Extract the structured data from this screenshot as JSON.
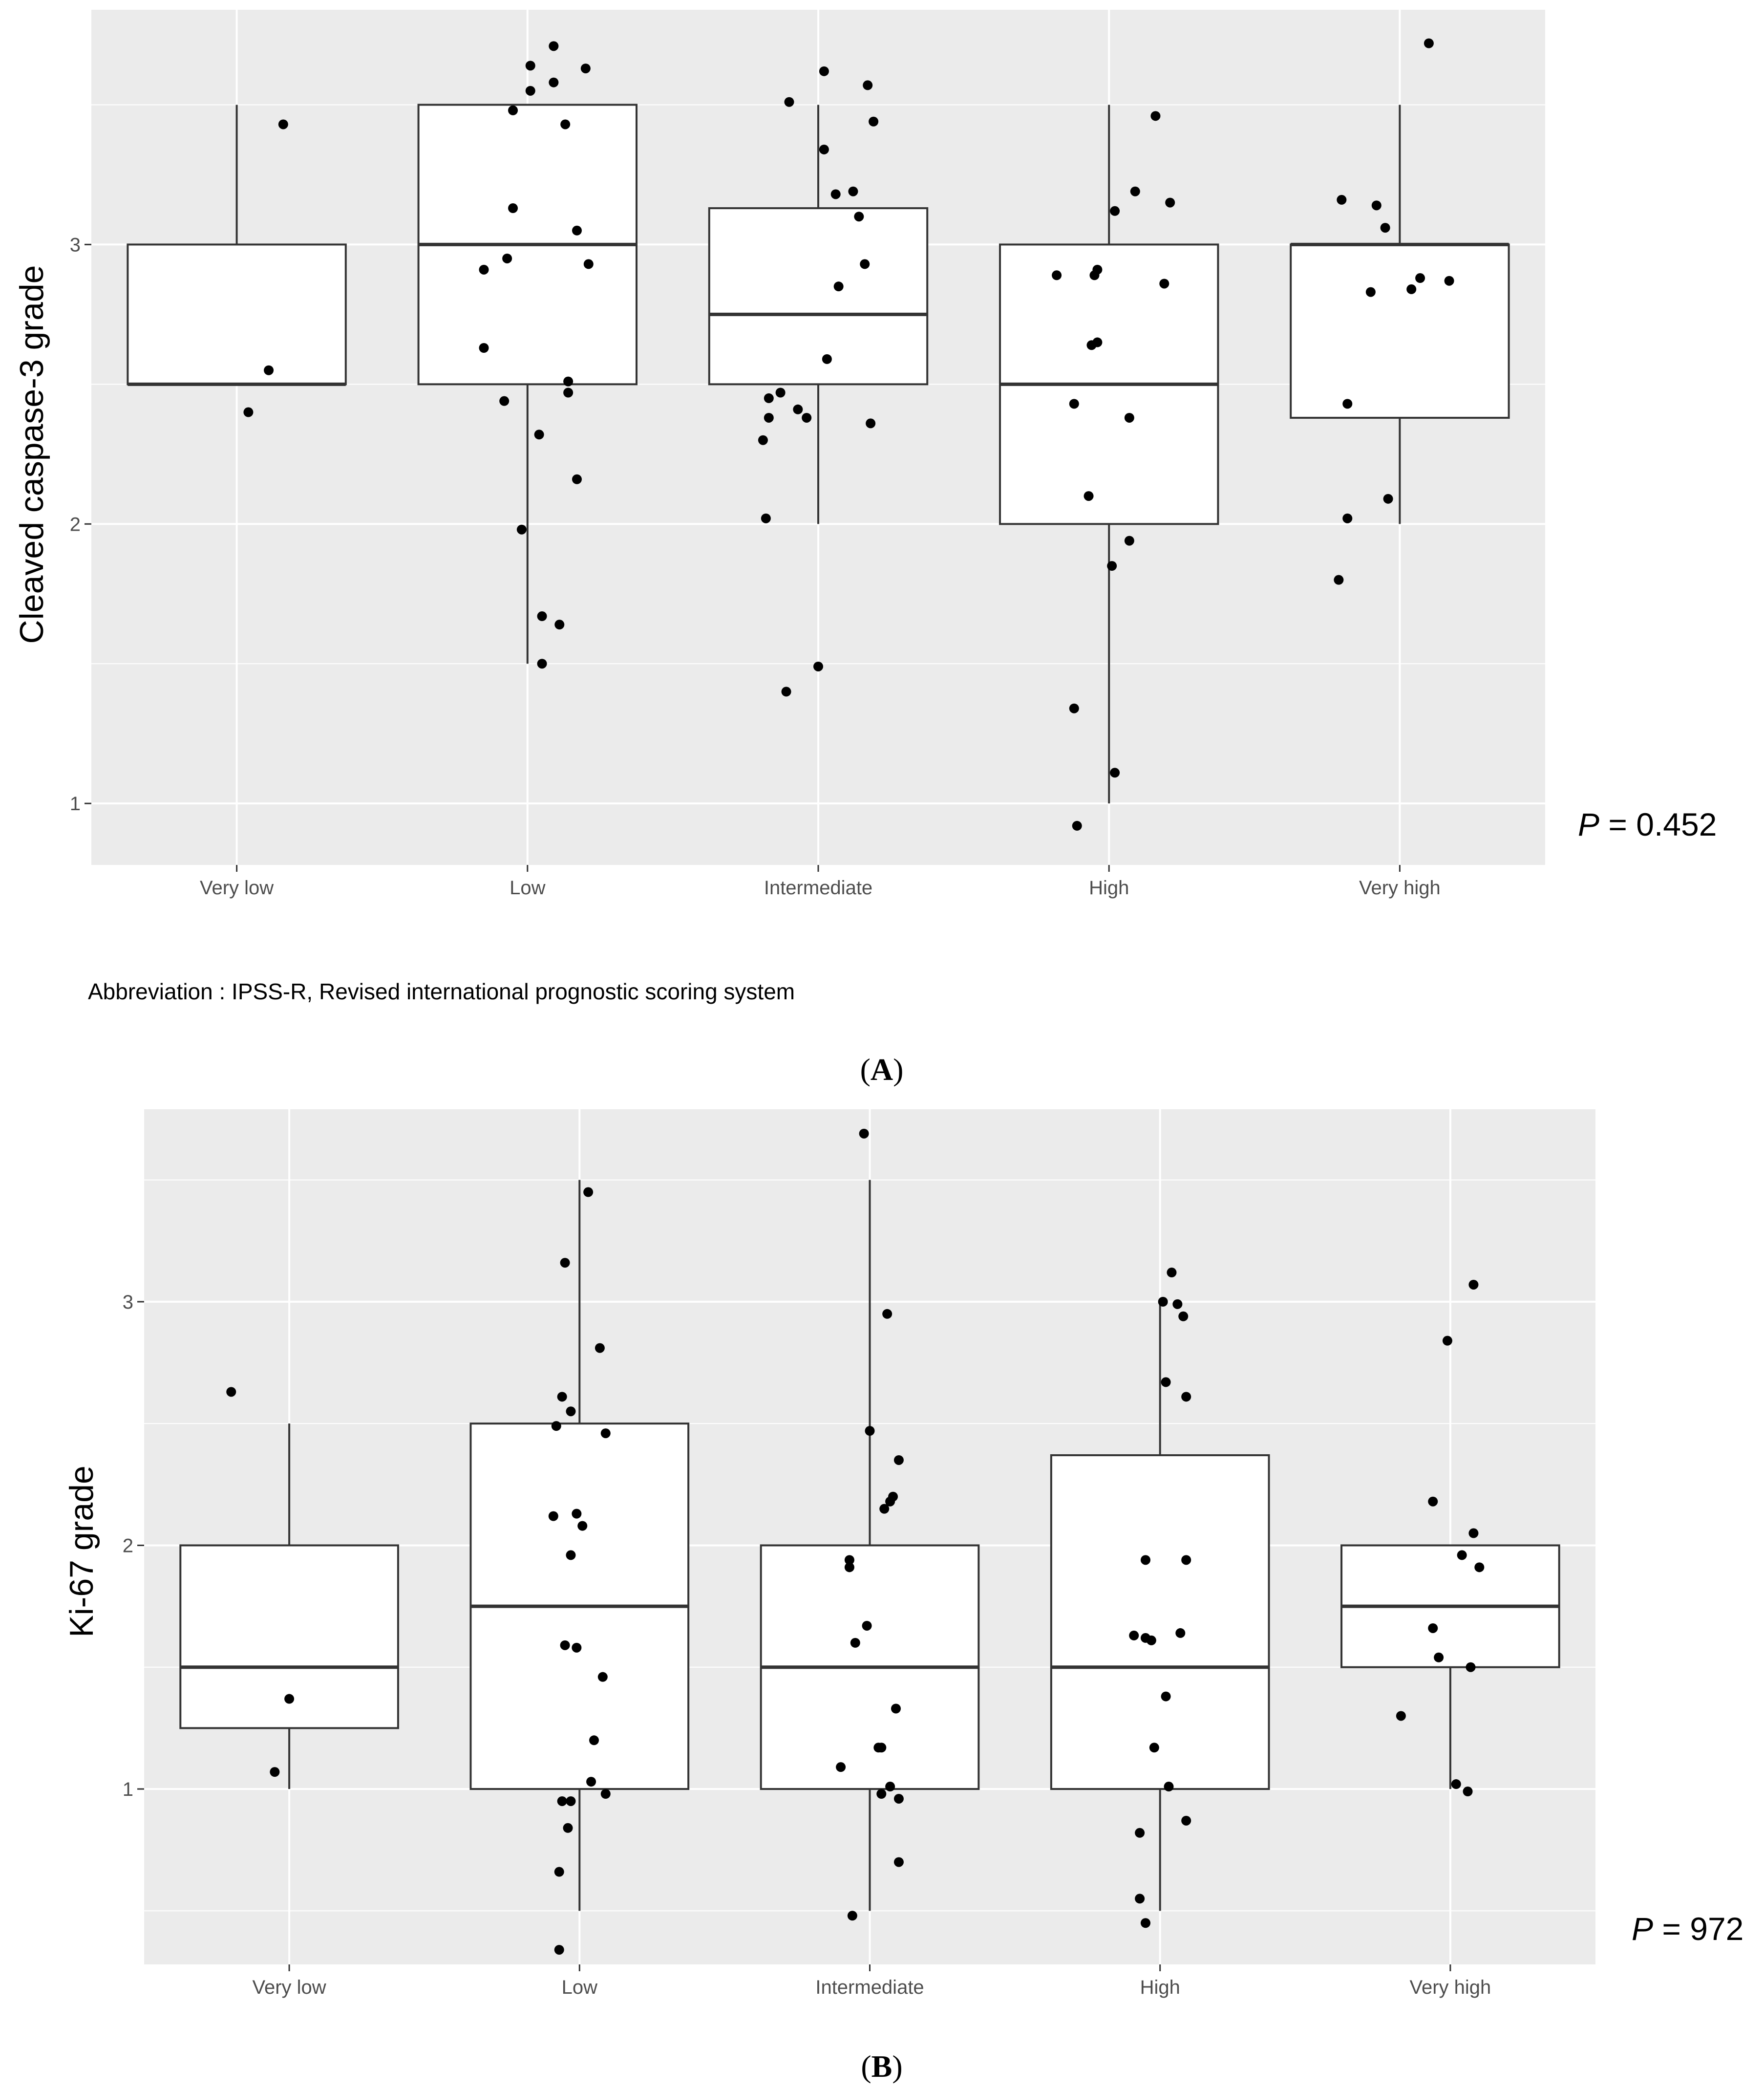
{
  "colors": {
    "panel_bg": "#ebebeb",
    "grid": "#ffffff",
    "box_fill": "#ffffff",
    "box_stroke": "#333333",
    "point": "#000000",
    "tick_text": "#4d4d4d"
  },
  "chart_data": [
    {
      "type": "box",
      "panel_label": "A",
      "title": "",
      "xlabel": "",
      "ylabel": "Cleaved caspase-3 grade",
      "categories": [
        "Very low",
        "Low",
        "Intermediate",
        "High",
        "Very high"
      ],
      "ylim": [
        0.78,
        3.84
      ],
      "yticks": [
        1,
        2,
        3
      ],
      "ytick_labels": [
        "1",
        "2",
        "3"
      ],
      "grid": true,
      "boxes": [
        {
          "category": "Very low",
          "whisker_low": 2.5,
          "q1": 2.5,
          "median": 2.5,
          "q3": 3.0,
          "whisker_high": 3.5
        },
        {
          "category": "Low",
          "whisker_low": 1.5,
          "q1": 2.5,
          "median": 3.0,
          "q3": 3.5,
          "whisker_high": 3.5
        },
        {
          "category": "Intermediate",
          "whisker_low": 2.0,
          "q1": 2.5,
          "median": 2.75,
          "q3": 3.13,
          "whisker_high": 3.5
        },
        {
          "category": "High",
          "whisker_low": 1.0,
          "q1": 2.0,
          "median": 2.5,
          "q3": 3.0,
          "whisker_high": 3.5
        },
        {
          "category": "Very high",
          "whisker_low": 2.0,
          "q1": 2.38,
          "median": 3.0,
          "q3": 3.0,
          "whisker_high": 3.5
        }
      ],
      "points": [
        {
          "x": 0.16,
          "y": 3.43
        },
        {
          "x": 0.11,
          "y": 2.55
        },
        {
          "x": 0.04,
          "y": 2.4
        },
        {
          "x": 0.01,
          "y": 3.64
        },
        {
          "x": 0.09,
          "y": 3.71
        },
        {
          "x": 0.2,
          "y": 3.63
        },
        {
          "x": 0.01,
          "y": 3.55
        },
        {
          "x": 0.09,
          "y": 3.58
        },
        {
          "x": -0.05,
          "y": 3.48
        },
        {
          "x": 0.13,
          "y": 3.43
        },
        {
          "x": -0.05,
          "y": 3.13
        },
        {
          "x": 0.17,
          "y": 3.05
        },
        {
          "x": -0.07,
          "y": 2.95
        },
        {
          "x": -0.15,
          "y": 2.91
        },
        {
          "x": 0.21,
          "y": 2.93
        },
        {
          "x": -0.15,
          "y": 2.63
        },
        {
          "x": 0.14,
          "y": 2.51
        },
        {
          "x": 0.14,
          "y": 2.47
        },
        {
          "x": -0.08,
          "y": 2.44
        },
        {
          "x": 0.04,
          "y": 2.32
        },
        {
          "x": 0.17,
          "y": 2.16
        },
        {
          "x": -0.02,
          "y": 1.98
        },
        {
          "x": 0.05,
          "y": 1.67
        },
        {
          "x": 0.11,
          "y": 1.64
        },
        {
          "x": 0.05,
          "y": 1.5
        },
        {
          "x": 0.02,
          "y": 3.62
        },
        {
          "x": 0.17,
          "y": 3.57
        },
        {
          "x": -0.1,
          "y": 3.51
        },
        {
          "x": 0.19,
          "y": 3.44
        },
        {
          "x": 0.02,
          "y": 3.34
        },
        {
          "x": 0.06,
          "y": 3.18
        },
        {
          "x": 0.12,
          "y": 3.19
        },
        {
          "x": 0.14,
          "y": 3.1
        },
        {
          "x": 0.16,
          "y": 2.93
        },
        {
          "x": 0.07,
          "y": 2.85
        },
        {
          "x": 0.03,
          "y": 2.59
        },
        {
          "x": -0.17,
          "y": 2.45
        },
        {
          "x": -0.13,
          "y": 2.47
        },
        {
          "x": -0.07,
          "y": 2.41
        },
        {
          "x": -0.04,
          "y": 2.38
        },
        {
          "x": -0.17,
          "y": 2.38
        },
        {
          "x": 0.18,
          "y": 2.36
        },
        {
          "x": -0.19,
          "y": 2.3
        },
        {
          "x": -0.18,
          "y": 2.02
        },
        {
          "x": 0.0,
          "y": 1.49
        },
        {
          "x": -0.11,
          "y": 1.4
        },
        {
          "x": 0.16,
          "y": 3.46
        },
        {
          "x": 0.09,
          "y": 3.19
        },
        {
          "x": 0.21,
          "y": 3.15
        },
        {
          "x": 0.02,
          "y": 3.12
        },
        {
          "x": -0.18,
          "y": 2.89
        },
        {
          "x": -0.05,
          "y": 2.89
        },
        {
          "x": -0.04,
          "y": 2.91
        },
        {
          "x": 0.19,
          "y": 2.86
        },
        {
          "x": -0.06,
          "y": 2.64
        },
        {
          "x": -0.04,
          "y": 2.65
        },
        {
          "x": -0.12,
          "y": 2.43
        },
        {
          "x": 0.07,
          "y": 2.38
        },
        {
          "x": -0.07,
          "y": 2.1
        },
        {
          "x": 0.07,
          "y": 1.94
        },
        {
          "x": 0.01,
          "y": 1.85
        },
        {
          "x": -0.12,
          "y": 1.34
        },
        {
          "x": 0.02,
          "y": 1.11
        },
        {
          "x": -0.11,
          "y": 0.92
        },
        {
          "x": 0.1,
          "y": 3.72
        },
        {
          "x": -0.2,
          "y": 3.16
        },
        {
          "x": -0.08,
          "y": 3.14
        },
        {
          "x": -0.05,
          "y": 3.06
        },
        {
          "x": 0.07,
          "y": 2.88
        },
        {
          "x": 0.17,
          "y": 2.87
        },
        {
          "x": 0.04,
          "y": 2.84
        },
        {
          "x": -0.1,
          "y": 2.83
        },
        {
          "x": -0.18,
          "y": 2.43
        },
        {
          "x": -0.04,
          "y": 2.09
        },
        {
          "x": -0.18,
          "y": 2.02
        },
        {
          "x": -0.21,
          "y": 1.8
        }
      ],
      "p_value": {
        "italic": "P",
        "text": " = 0.452"
      },
      "abbreviation": "Abbreviation : IPSS-R, Revised international prognostic scoring system"
    },
    {
      "type": "box",
      "panel_label": "B",
      "title": "",
      "xlabel": "",
      "ylabel": "Ki-67 grade",
      "categories": [
        "Very low",
        "Low",
        "Intermediate",
        "High",
        "Very high"
      ],
      "ylim": [
        0.28,
        3.79
      ],
      "yticks": [
        1,
        2,
        3
      ],
      "ytick_labels": [
        "1",
        "2",
        "3"
      ],
      "grid": true,
      "boxes": [
        {
          "category": "Very low",
          "whisker_low": 1.0,
          "q1": 1.25,
          "median": 1.5,
          "q3": 2.0,
          "whisker_high": 2.5
        },
        {
          "category": "Low",
          "whisker_low": 0.5,
          "q1": 1.0,
          "median": 1.75,
          "q3": 2.5,
          "whisker_high": 3.5
        },
        {
          "category": "Intermediate",
          "whisker_low": 0.5,
          "q1": 1.0,
          "median": 1.5,
          "q3": 2.0,
          "whisker_high": 3.5
        },
        {
          "category": "High",
          "whisker_low": 0.5,
          "q1": 1.0,
          "median": 1.5,
          "q3": 2.37,
          "whisker_high": 3.0
        },
        {
          "category": "Very high",
          "whisker_low": 1.0,
          "q1": 1.5,
          "median": 1.75,
          "q3": 2.0,
          "whisker_high": 2.0
        }
      ],
      "points": [
        {
          "x": -0.2,
          "y": 2.63
        },
        {
          "x": 0.0,
          "y": 1.37
        },
        {
          "x": -0.05,
          "y": 1.07
        },
        {
          "x": 0.03,
          "y": 3.45
        },
        {
          "x": -0.05,
          "y": 3.16
        },
        {
          "x": 0.07,
          "y": 2.81
        },
        {
          "x": -0.06,
          "y": 2.61
        },
        {
          "x": -0.03,
          "y": 2.55
        },
        {
          "x": -0.08,
          "y": 2.49
        },
        {
          "x": 0.09,
          "y": 2.46
        },
        {
          "x": -0.09,
          "y": 2.12
        },
        {
          "x": -0.01,
          "y": 2.13
        },
        {
          "x": 0.01,
          "y": 2.08
        },
        {
          "x": -0.03,
          "y": 1.96
        },
        {
          "x": -0.05,
          "y": 1.59
        },
        {
          "x": -0.01,
          "y": 1.58
        },
        {
          "x": 0.08,
          "y": 1.46
        },
        {
          "x": 0.05,
          "y": 1.2
        },
        {
          "x": 0.04,
          "y": 1.03
        },
        {
          "x": 0.09,
          "y": 0.98
        },
        {
          "x": -0.06,
          "y": 0.95
        },
        {
          "x": -0.03,
          "y": 0.95
        },
        {
          "x": -0.04,
          "y": 0.84
        },
        {
          "x": -0.07,
          "y": 0.66
        },
        {
          "x": -0.07,
          "y": 0.34
        },
        {
          "x": -0.02,
          "y": 3.69
        },
        {
          "x": 0.06,
          "y": 2.95
        },
        {
          "x": 0.0,
          "y": 2.47
        },
        {
          "x": 0.1,
          "y": 2.35
        },
        {
          "x": 0.08,
          "y": 2.2
        },
        {
          "x": 0.07,
          "y": 2.18
        },
        {
          "x": 0.05,
          "y": 2.15
        },
        {
          "x": -0.07,
          "y": 1.94
        },
        {
          "x": -0.07,
          "y": 1.91
        },
        {
          "x": -0.01,
          "y": 1.67
        },
        {
          "x": -0.05,
          "y": 1.6
        },
        {
          "x": 0.09,
          "y": 1.33
        },
        {
          "x": 0.03,
          "y": 1.17
        },
        {
          "x": 0.04,
          "y": 1.17
        },
        {
          "x": -0.1,
          "y": 1.09
        },
        {
          "x": 0.07,
          "y": 1.01
        },
        {
          "x": 0.04,
          "y": 0.98
        },
        {
          "x": 0.1,
          "y": 0.96
        },
        {
          "x": 0.1,
          "y": 0.7
        },
        {
          "x": -0.06,
          "y": 0.48
        },
        {
          "x": 0.04,
          "y": 3.12
        },
        {
          "x": 0.06,
          "y": 2.99
        },
        {
          "x": 0.08,
          "y": 2.94
        },
        {
          "x": 0.02,
          "y": 2.67
        },
        {
          "x": 0.09,
          "y": 2.61
        },
        {
          "x": -0.05,
          "y": 1.94
        },
        {
          "x": 0.09,
          "y": 1.94
        },
        {
          "x": -0.09,
          "y": 1.63
        },
        {
          "x": -0.05,
          "y": 1.62
        },
        {
          "x": -0.03,
          "y": 1.61
        },
        {
          "x": 0.07,
          "y": 1.64
        },
        {
          "x": 0.02,
          "y": 1.38
        },
        {
          "x": -0.02,
          "y": 1.17
        },
        {
          "x": 0.03,
          "y": 1.01
        },
        {
          "x": 0.09,
          "y": 0.87
        },
        {
          "x": -0.07,
          "y": 0.82
        },
        {
          "x": -0.07,
          "y": 0.55
        },
        {
          "x": -0.05,
          "y": 0.45
        },
        {
          "x": 0.01,
          "y": 3.0
        },
        {
          "x": 0.08,
          "y": 3.07
        },
        {
          "x": -0.01,
          "y": 2.84
        },
        {
          "x": -0.06,
          "y": 2.18
        },
        {
          "x": 0.08,
          "y": 2.05
        },
        {
          "x": 0.04,
          "y": 1.96
        },
        {
          "x": 0.1,
          "y": 1.91
        },
        {
          "x": 0.07,
          "y": 1.5
        },
        {
          "x": -0.06,
          "y": 1.66
        },
        {
          "x": -0.04,
          "y": 1.54
        },
        {
          "x": -0.17,
          "y": 1.3
        },
        {
          "x": 0.02,
          "y": 1.02
        },
        {
          "x": 0.06,
          "y": 0.99
        }
      ],
      "p_value": {
        "italic": "P",
        "text": " = 972"
      }
    }
  ]
}
